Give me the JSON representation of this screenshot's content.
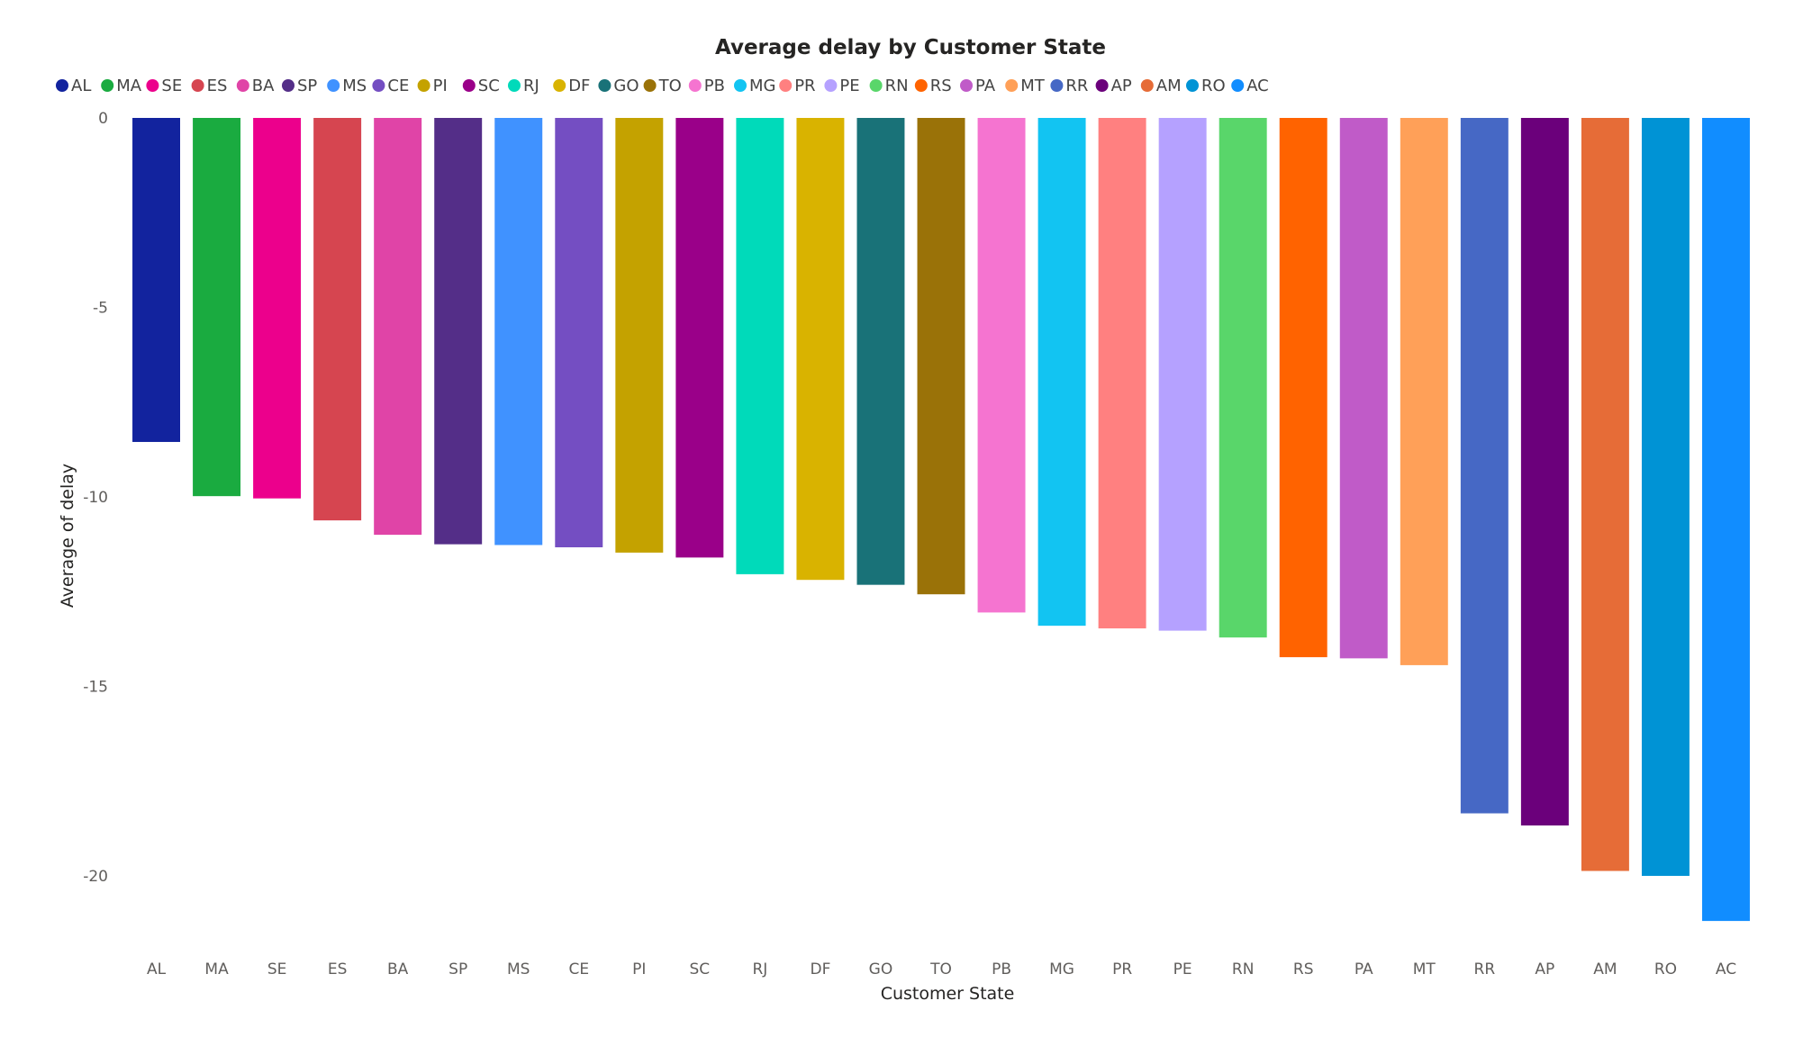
{
  "chart_data": {
    "type": "bar",
    "title": "Average delay by Customer State",
    "xlabel": "Customer State",
    "ylabel": "Average of delay",
    "ylim": [
      -21.5,
      0
    ],
    "yticks": [
      0,
      -5,
      -10,
      -15,
      -20
    ],
    "grid": false,
    "legend_position": "top-left",
    "categories": [
      "AL",
      "MA",
      "SE",
      "ES",
      "BA",
      "SP",
      "MS",
      "CE",
      "PI",
      "SC",
      "RJ",
      "DF",
      "GO",
      "TO",
      "PB",
      "MG",
      "PR",
      "PE",
      "RN",
      "RS",
      "PA",
      "MT",
      "RR",
      "AP",
      "AM",
      "RO",
      "AC"
    ],
    "values": [
      -8.55,
      -9.98,
      -10.04,
      -10.62,
      -11.0,
      -11.25,
      -11.27,
      -11.33,
      -11.47,
      -11.6,
      -12.04,
      -12.19,
      -12.32,
      -12.57,
      -13.05,
      -13.4,
      -13.47,
      -13.53,
      -13.71,
      -14.23,
      -14.26,
      -14.44,
      -18.35,
      -18.67,
      -19.87,
      -20.0,
      -21.19
    ],
    "colors": [
      "#12239E",
      "#1AAB40",
      "#EC008C",
      "#D64550",
      "#E044A7",
      "#542E88",
      "#4092FF",
      "#744EC2",
      "#C4A200",
      "#9A0089",
      "#00DABA",
      "#D9B300",
      "#197278",
      "#9A7208",
      "#F574D0",
      "#12C4F2",
      "#FF8080",
      "#B5A1FF",
      "#59D66A",
      "#FF6300",
      "#C05BC8",
      "#FFA058",
      "#4668C5",
      "#6B007B",
      "#E66C37",
      "#0093D5",
      "#118DFF"
    ]
  }
}
